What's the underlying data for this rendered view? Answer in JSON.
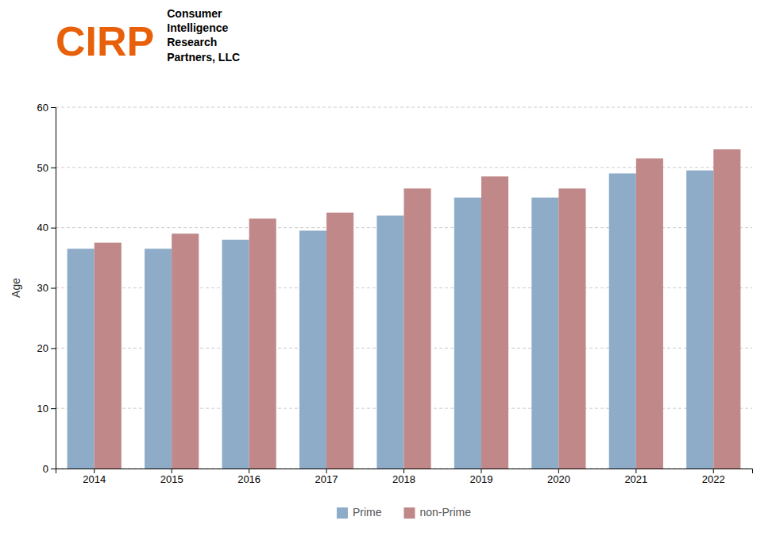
{
  "chart_data": {
    "type": "bar",
    "y_label": "Age",
    "categories": [
      "2014",
      "2015",
      "2016",
      "2017",
      "2018",
      "2019",
      "2020",
      "2021",
      "2022"
    ],
    "series": [
      {
        "name": "Prime",
        "color": "#8eacc8",
        "values": [
          36.5,
          36.5,
          38.0,
          39.5,
          42.0,
          45.0,
          45.0,
          49.0,
          49.5
        ]
      },
      {
        "name": "non-Prime",
        "color": "#c08888",
        "values": [
          37.5,
          39.0,
          41.5,
          42.5,
          46.5,
          48.5,
          46.5,
          51.5,
          53.0
        ]
      }
    ],
    "ylim": [
      0,
      60
    ],
    "yticks": [
      0,
      10,
      20,
      30,
      40,
      50,
      60
    ],
    "grid": true,
    "legend": "bottom",
    "annotations": [
      {
        "text": "CIRP",
        "color": "#e8600a"
      },
      {
        "text": "Consumer\nIntelligence\nResearch\nPartners, LLC",
        "color": "#000000"
      }
    ]
  }
}
